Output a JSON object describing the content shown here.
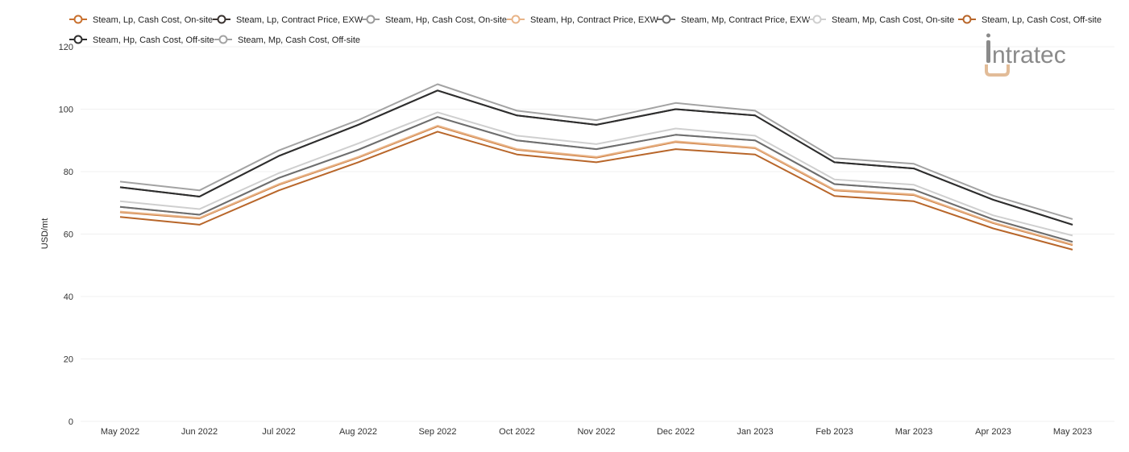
{
  "brand": {
    "logo_text": "ntratec"
  },
  "chart_data": {
    "type": "line",
    "xlabel": "",
    "ylabel": "USD/mt",
    "ylim": [
      0,
      120
    ],
    "yticks": [
      0,
      20,
      40,
      60,
      80,
      100,
      120
    ],
    "grid": true,
    "legend_position": "top",
    "categories": [
      "May 2022",
      "Jun 2022",
      "Jul 2022",
      "Aug 2022",
      "Sep 2022",
      "Oct 2022",
      "Nov 2022",
      "Dec 2022",
      "Jan 2023",
      "Feb 2023",
      "Mar 2023",
      "Apr 2023",
      "May 2023"
    ],
    "series": [
      {
        "name": "Steam, Lp, Cash Cost, On-site",
        "color": "#c8702e",
        "values": [
          67.0,
          65.0,
          75.8,
          84.5,
          94.5,
          87.0,
          84.5,
          89.5,
          87.5,
          74.0,
          72.5,
          63.5,
          56.5
        ]
      },
      {
        "name": "Steam, Lp, Contract Price, EXW",
        "color": "#3a3330",
        "values": [
          75.0,
          72.0,
          85.0,
          95.0,
          106.0,
          98.0,
          95.0,
          100.0,
          98.0,
          83.0,
          81.0,
          71.0,
          63.0
        ]
      },
      {
        "name": "Steam, Hp, Cash Cost, On-site",
        "color": "#9a9a9a",
        "values": [
          68.7,
          66.2,
          78.0,
          87.0,
          97.5,
          90.0,
          87.2,
          91.8,
          90.0,
          76.0,
          74.2,
          64.7,
          57.5
        ]
      },
      {
        "name": "Steam, Hp, Contract Price, EXW",
        "color": "#e8b488",
        "values": [
          67.2,
          65.2,
          76.0,
          84.7,
          94.7,
          87.2,
          84.7,
          89.7,
          87.7,
          74.2,
          72.7,
          63.7,
          56.7
        ]
      },
      {
        "name": "Steam, Mp, Contract Price, EXW",
        "color": "#6e6e6e",
        "values": [
          68.7,
          66.2,
          78.0,
          87.0,
          97.5,
          90.0,
          87.2,
          91.8,
          90.0,
          76.0,
          74.2,
          64.7,
          57.5
        ]
      },
      {
        "name": "Steam, Mp, Cash Cost, On-site",
        "color": "#cfcfcf",
        "values": [
          70.5,
          68.0,
          79.5,
          89.0,
          99.0,
          91.5,
          88.8,
          93.8,
          91.5,
          77.5,
          75.8,
          66.0,
          59.5
        ]
      },
      {
        "name": "Steam, Lp, Cash Cost, Off-site",
        "color": "#b8662a",
        "values": [
          65.5,
          63.0,
          74.0,
          83.0,
          92.8,
          85.5,
          83.0,
          87.2,
          85.5,
          72.2,
          70.5,
          61.8,
          55.0
        ]
      },
      {
        "name": "Steam, Hp, Cash Cost, Off-site",
        "color": "#2e2e2e",
        "values": [
          75.0,
          72.0,
          85.0,
          95.0,
          106.0,
          98.0,
          95.0,
          100.0,
          98.0,
          83.0,
          81.0,
          71.0,
          63.0
        ]
      },
      {
        "name": "Steam, Mp, Cash Cost, Off-site",
        "color": "#a3a3a3",
        "values": [
          76.8,
          74.0,
          86.8,
          96.5,
          108.0,
          99.5,
          96.5,
          102.0,
          99.5,
          84.3,
          82.5,
          72.3,
          64.8
        ]
      }
    ]
  }
}
